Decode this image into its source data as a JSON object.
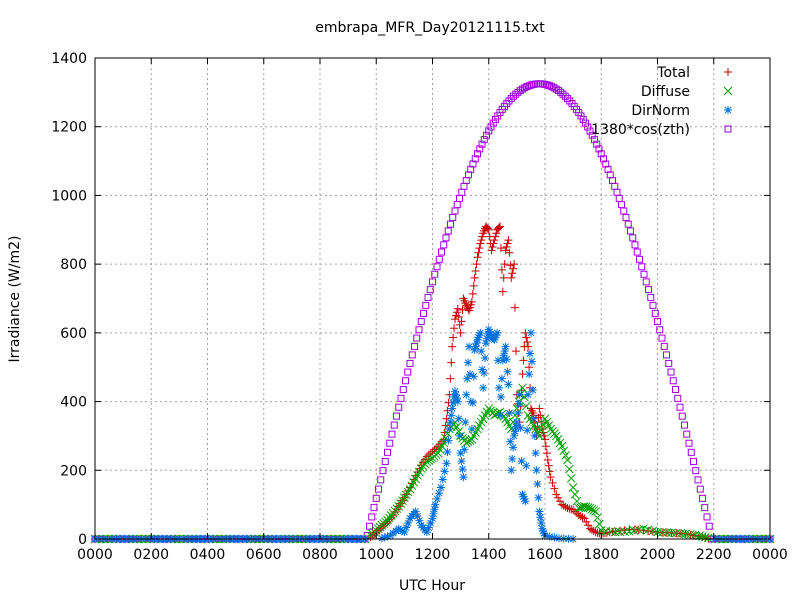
{
  "chart_data": {
    "type": "scatter",
    "title": "embrapa_MFR_Day20121115.txt",
    "xlabel": "UTC Hour",
    "ylabel": "Irradiance (W/m2)",
    "xlim": [
      0,
      24
    ],
    "ylim": [
      0,
      1400
    ],
    "x_ticks": [
      "0000",
      "0200",
      "0400",
      "0600",
      "0800",
      "1000",
      "1200",
      "1400",
      "1600",
      "1800",
      "2000",
      "2200",
      "0000"
    ],
    "y_ticks": [
      "0",
      "200",
      "400",
      "600",
      "800",
      "1000",
      "1200",
      "1400"
    ],
    "grid": true,
    "legend_position": "top-right",
    "series": [
      {
        "name": "Total",
        "color": "#cc0000",
        "marker": "plus",
        "x": [
          9.8,
          10.0,
          10.2,
          10.4,
          10.6,
          10.8,
          11.0,
          11.2,
          11.4,
          11.6,
          11.8,
          12.0,
          12.2,
          12.4,
          12.5,
          12.6,
          12.7,
          12.8,
          12.9,
          13.0,
          13.1,
          13.2,
          13.3,
          13.4,
          13.5,
          13.6,
          13.7,
          13.8,
          13.9,
          14.0,
          14.1,
          14.2,
          14.3,
          14.4,
          14.5,
          14.6,
          14.7,
          14.8,
          14.9,
          15.0,
          15.1,
          15.2,
          15.3,
          15.4,
          15.5,
          15.6,
          15.7,
          15.8,
          15.9,
          16.0,
          16.1,
          16.2,
          16.4,
          16.6,
          16.8,
          17.0,
          17.2,
          17.4,
          17.6,
          17.8,
          18.0,
          18.2,
          18.5,
          19.0,
          19.5,
          20.0,
          20.5,
          21.0,
          21.5,
          21.8
        ],
        "y": [
          5,
          20,
          35,
          50,
          70,
          95,
          120,
          150,
          185,
          215,
          240,
          255,
          270,
          290,
          350,
          420,
          560,
          640,
          670,
          600,
          700,
          680,
          665,
          690,
          760,
          820,
          860,
          890,
          910,
          900,
          840,
          870,
          900,
          910,
          720,
          840,
          870,
          760,
          800,
          420,
          340,
          480,
          600,
          560,
          380,
          360,
          300,
          380,
          320,
          290,
          230,
          180,
          130,
          100,
          90,
          85,
          70,
          60,
          30,
          20,
          15,
          18,
          22,
          28,
          25,
          20,
          18,
          15,
          8,
          2
        ]
      },
      {
        "name": "Diffuse",
        "color": "#00a000",
        "marker": "cross",
        "x": [
          9.8,
          10.0,
          10.2,
          10.4,
          10.6,
          10.8,
          11.0,
          11.2,
          11.4,
          11.6,
          11.8,
          12.0,
          12.2,
          12.4,
          12.6,
          12.8,
          13.0,
          13.2,
          13.4,
          13.6,
          13.8,
          14.0,
          14.2,
          14.4,
          14.6,
          14.8,
          15.0,
          15.2,
          15.4,
          15.6,
          15.8,
          16.0,
          16.2,
          16.4,
          16.6,
          16.8,
          17.0,
          17.2,
          17.4,
          17.6,
          17.8,
          18.0,
          18.5,
          19.0,
          19.5,
          20.0,
          20.5,
          21.0,
          21.5,
          21.8
        ],
        "y": [
          10,
          25,
          40,
          55,
          75,
          95,
          120,
          145,
          175,
          205,
          225,
          235,
          250,
          280,
          320,
          340,
          300,
          280,
          290,
          320,
          350,
          380,
          360,
          370,
          350,
          320,
          380,
          440,
          360,
          330,
          300,
          350,
          320,
          300,
          270,
          230,
          150,
          90,
          95,
          90,
          80,
          25,
          20,
          22,
          30,
          20,
          18,
          15,
          10,
          3
        ]
      },
      {
        "name": "DirNorm",
        "color": "#0070e0",
        "marker": "asterisk",
        "x": [
          10.2,
          10.5,
          10.8,
          11.0,
          11.2,
          11.4,
          11.6,
          11.8,
          12.0,
          12.1,
          12.3,
          12.5,
          12.6,
          12.7,
          12.8,
          12.9,
          13.0,
          13.1,
          13.2,
          13.3,
          13.4,
          13.5,
          13.6,
          13.7,
          13.8,
          13.9,
          14.0,
          14.1,
          14.2,
          14.3,
          14.4,
          14.5,
          14.6,
          14.7,
          14.8,
          14.9,
          15.0,
          15.1,
          15.2,
          15.3,
          15.4,
          15.5,
          15.6,
          15.7,
          15.8,
          15.9,
          16.0,
          16.5,
          17.0
        ],
        "y": [
          2,
          10,
          30,
          20,
          60,
          80,
          40,
          20,
          60,
          100,
          150,
          220,
          320,
          380,
          430,
          400,
          250,
          180,
          420,
          560,
          320,
          550,
          580,
          600,
          440,
          570,
          610,
          590,
          580,
          600,
          360,
          520,
          560,
          450,
          200,
          300,
          340,
          420,
          130,
          110,
          420,
          600,
          350,
          200,
          80,
          30,
          10,
          2,
          0
        ]
      },
      {
        "name": "1380*cos(zth)",
        "color": "#a000e0",
        "marker": "square",
        "peak_hour": 15.8,
        "peak_value": 1325,
        "sunrise_hour": 9.6,
        "sunset_hour": 21.9
      }
    ]
  }
}
